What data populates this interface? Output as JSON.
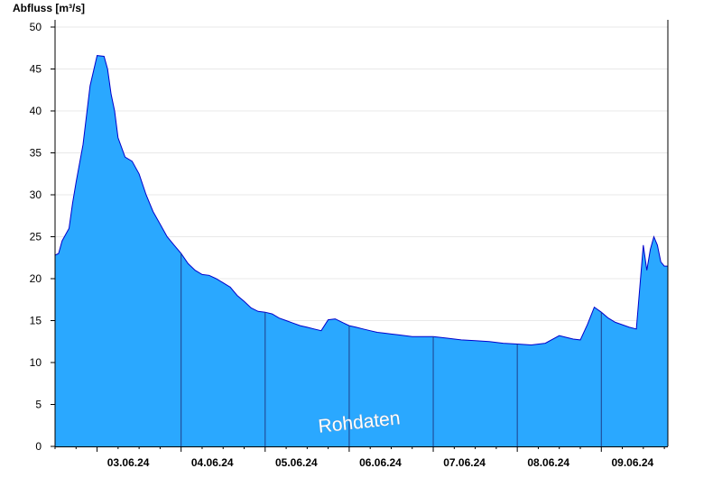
{
  "chart_data": {
    "type": "area",
    "ylabel": "Abfluss [m³/s]",
    "ylim": [
      0,
      50
    ],
    "yticks": [
      0,
      5,
      10,
      15,
      20,
      25,
      30,
      35,
      40,
      45,
      50
    ],
    "xlim_days": [
      "02.06.24 12:00",
      "09.06.24 19:00"
    ],
    "categories": [
      "03.06.24",
      "04.06.24",
      "05.06.24",
      "06.06.24",
      "07.06.24",
      "08.06.24",
      "09.06.24"
    ],
    "grid": "horizontal",
    "colors": {
      "fill": "#2aa8ff",
      "line": "#0000cc",
      "grid": "#e8e8e8",
      "day_separator": "#1e3f8a"
    },
    "watermark": "Rohdaten",
    "series": [
      {
        "x": [
          "02.06.24 12:00",
          "02.06.24 13:00",
          "02.06.24 14:00",
          "02.06.24 16:00",
          "02.06.24 17:00",
          "02.06.24 18:00",
          "02.06.24 20:00",
          "02.06.24 22:00",
          "03.06.24 00:00",
          "03.06.24 02:00",
          "03.06.24 03:00",
          "03.06.24 04:00",
          "03.06.24 05:00",
          "03.06.24 06:00",
          "03.06.24 08:00",
          "03.06.24 10:00",
          "03.06.24 12:00",
          "03.06.24 14:00",
          "03.06.24 16:00",
          "03.06.24 18:00",
          "03.06.24 20:00",
          "03.06.24 22:00",
          "04.06.24 00:00",
          "04.06.24 02:00",
          "04.06.24 04:00",
          "04.06.24 06:00",
          "04.06.24 08:00",
          "04.06.24 10:00",
          "04.06.24 12:00",
          "04.06.24 14:00",
          "04.06.24 16:00",
          "04.06.24 18:00",
          "04.06.24 20:00",
          "04.06.24 22:00",
          "05.06.24 00:00",
          "05.06.24 02:00",
          "05.06.24 04:00",
          "05.06.24 06:00",
          "05.06.24 08:00",
          "05.06.24 10:00",
          "05.06.24 12:00",
          "05.06.24 14:00",
          "05.06.24 16:00",
          "05.06.24 18:00",
          "05.06.24 20:00",
          "05.06.24 22:00",
          "06.06.24 00:00",
          "06.06.24 02:00",
          "06.06.24 04:00",
          "06.06.24 06:00",
          "06.06.24 08:00",
          "06.06.24 10:00",
          "06.06.24 12:00",
          "06.06.24 14:00",
          "06.06.24 16:00",
          "06.06.24 18:00",
          "06.06.24 20:00",
          "06.06.24 22:00",
          "07.06.24 00:00",
          "07.06.24 02:00",
          "07.06.24 04:00",
          "07.06.24 08:00",
          "07.06.24 12:00",
          "07.06.24 16:00",
          "07.06.24 20:00",
          "08.06.24 00:00",
          "08.06.24 04:00",
          "08.06.24 08:00",
          "08.06.24 12:00",
          "08.06.24 14:00",
          "08.06.24 16:00",
          "08.06.24 18:00",
          "08.06.24 20:00",
          "08.06.24 22:00",
          "09.06.24 00:00",
          "09.06.24 02:00",
          "09.06.24 04:00",
          "09.06.24 06:00",
          "09.06.24 08:00",
          "09.06.24 10:00",
          "09.06.24 12:00",
          "09.06.24 13:00",
          "09.06.24 14:00",
          "09.06.24 15:00",
          "09.06.24 16:00",
          "09.06.24 17:00",
          "09.06.24 18:00",
          "09.06.24 19:00"
        ],
        "values": [
          22.8,
          23.0,
          24.5,
          26.0,
          29.0,
          31.5,
          36.0,
          43.0,
          46.6,
          46.5,
          45.0,
          42.0,
          40.0,
          36.8,
          34.5,
          34.0,
          32.5,
          30.0,
          28.0,
          26.5,
          25.0,
          24.0,
          23.0,
          21.8,
          21.0,
          20.5,
          20.4,
          20.0,
          19.5,
          19.0,
          18.0,
          17.3,
          16.5,
          16.1,
          16.0,
          15.8,
          15.3,
          15.0,
          14.7,
          14.4,
          14.2,
          14.0,
          13.8,
          15.1,
          15.2,
          14.8,
          14.4,
          14.2,
          14.0,
          13.8,
          13.6,
          13.5,
          13.4,
          13.3,
          13.2,
          13.1,
          13.1,
          13.1,
          13.1,
          13.0,
          12.9,
          12.7,
          12.6,
          12.5,
          12.3,
          12.2,
          12.1,
          12.3,
          13.2,
          13.0,
          12.8,
          12.7,
          14.5,
          16.6,
          16.0,
          15.3,
          14.8,
          14.5,
          14.2,
          14.0,
          24.0,
          21.0,
          23.5,
          25.0,
          24.0,
          22.0,
          21.5,
          21.5
        ]
      }
    ]
  }
}
